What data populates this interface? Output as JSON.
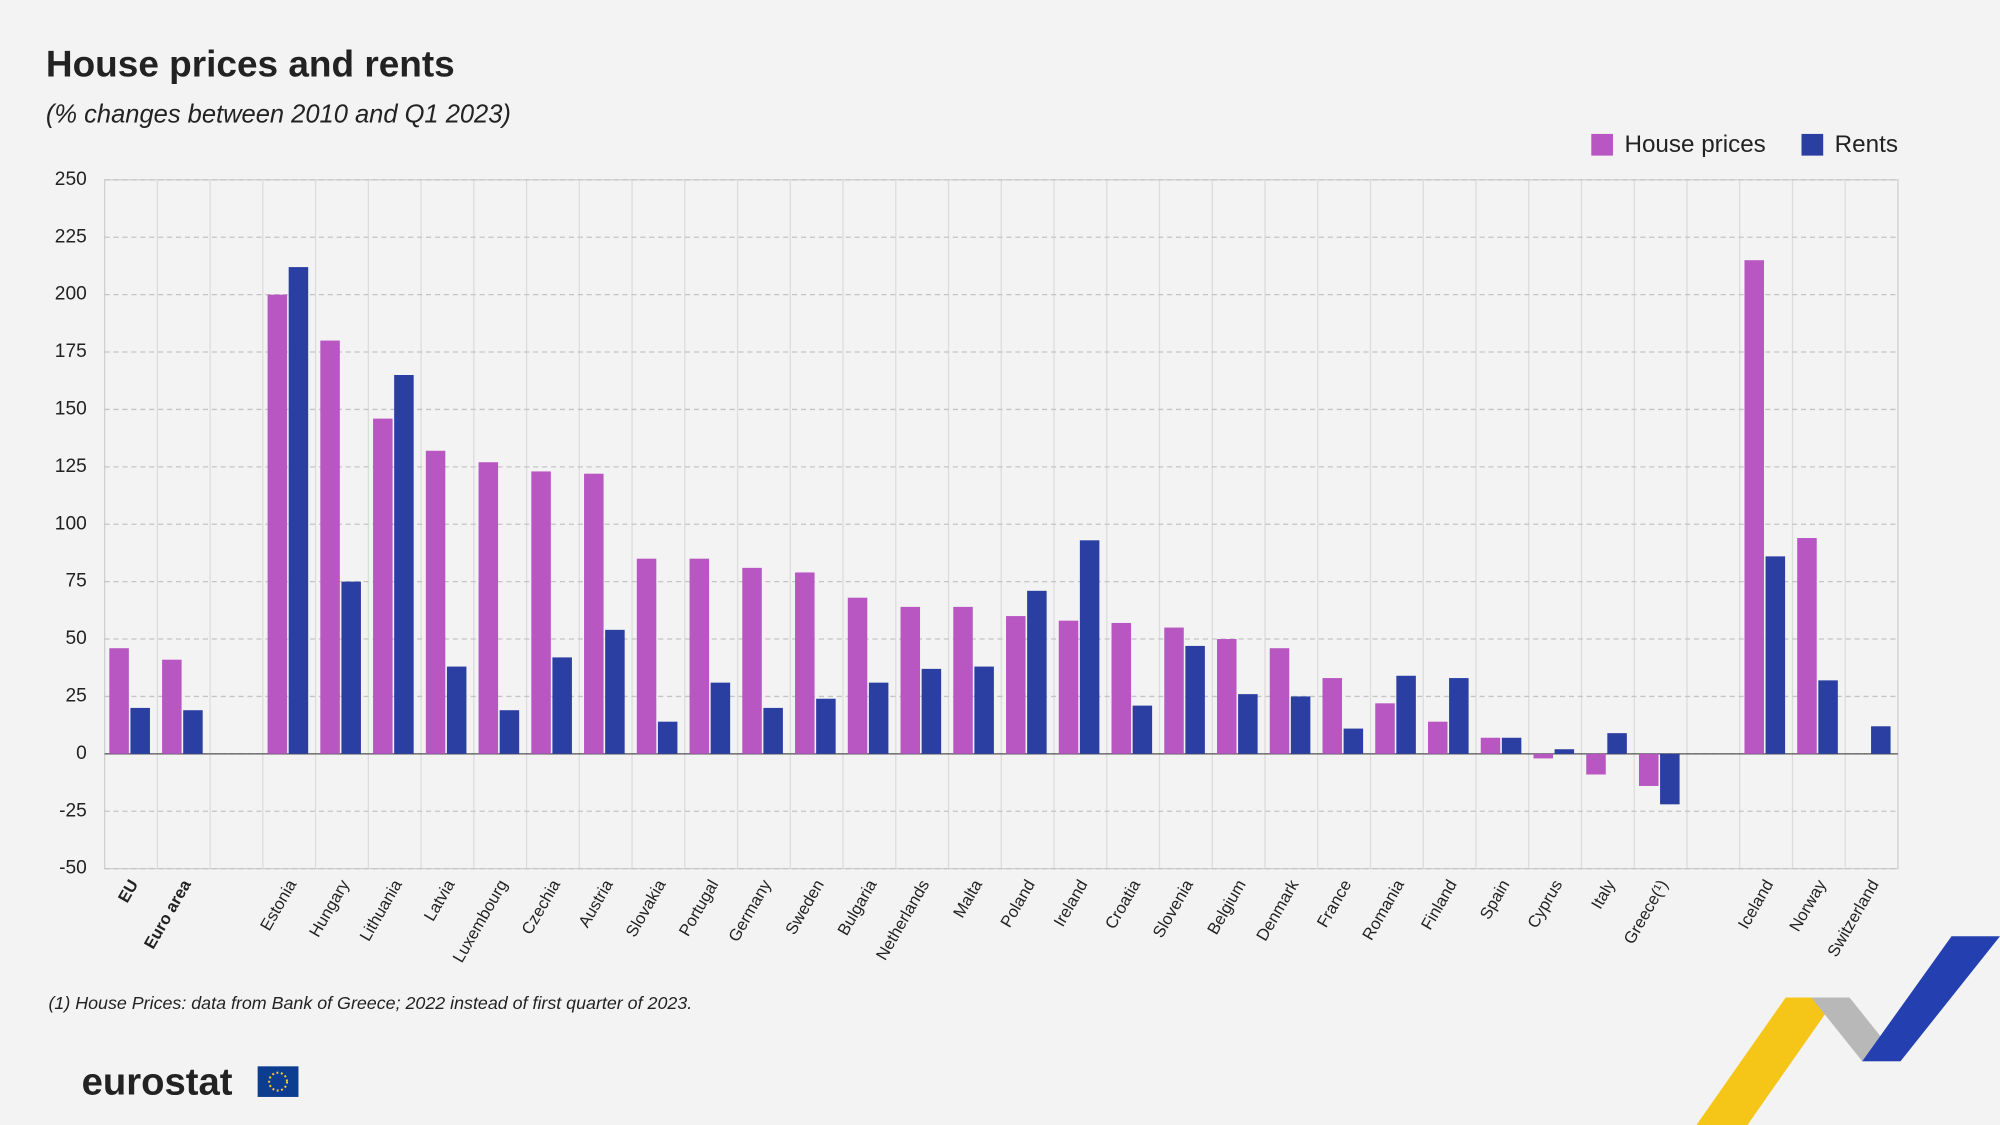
{
  "chart_data": {
    "type": "bar",
    "title": "House prices and rents",
    "subtitle": "(% changes between 2010 and Q1 2023)",
    "footnote": "(1) House Prices: data from Bank of Greece; 2022 instead of first quarter of 2023.",
    "logo": "eurostat",
    "categories": [
      "EU",
      "Euro area",
      null,
      "Estonia",
      "Hungary",
      "Lithuania",
      "Latvia",
      "Luxembourg",
      "Czechia",
      "Austria",
      "Slovakia",
      "Portugal",
      "Germany",
      "Sweden",
      "Bulgaria",
      "Netherlands",
      "Malta",
      "Poland",
      "Ireland",
      "Croatia",
      "Slovenia",
      "Belgium",
      "Denmark",
      "France",
      "Romania",
      "Finland",
      "Spain",
      "Cyprus",
      "Italy",
      "Greece(¹)",
      null,
      "Iceland",
      "Norway",
      "Switzerland"
    ],
    "bold_category_indices": [
      0,
      1
    ],
    "series": [
      {
        "name": "House prices",
        "color": "#b857c2",
        "values": [
          46,
          41,
          null,
          200,
          180,
          146,
          132,
          127,
          123,
          122,
          85,
          85,
          81,
          79,
          68,
          64,
          64,
          60,
          58,
          57,
          55,
          50,
          46,
          33,
          22,
          14,
          7,
          -2,
          -9,
          -14,
          null,
          215,
          94,
          null
        ]
      },
      {
        "name": "Rents",
        "color": "#2b3fa3",
        "values": [
          20,
          19,
          null,
          212,
          75,
          165,
          38,
          19,
          42,
          54,
          14,
          31,
          20,
          24,
          31,
          37,
          38,
          71,
          93,
          21,
          47,
          26,
          25,
          11,
          34,
          33,
          7,
          2,
          9,
          -22,
          null,
          86,
          32,
          12
        ]
      }
    ],
    "ylim": [
      -50,
      250
    ],
    "yticks": [
      -50,
      -25,
      0,
      25,
      50,
      75,
      100,
      125,
      150,
      175,
      200,
      225,
      250
    ],
    "grid": true,
    "legend": "top-right"
  }
}
